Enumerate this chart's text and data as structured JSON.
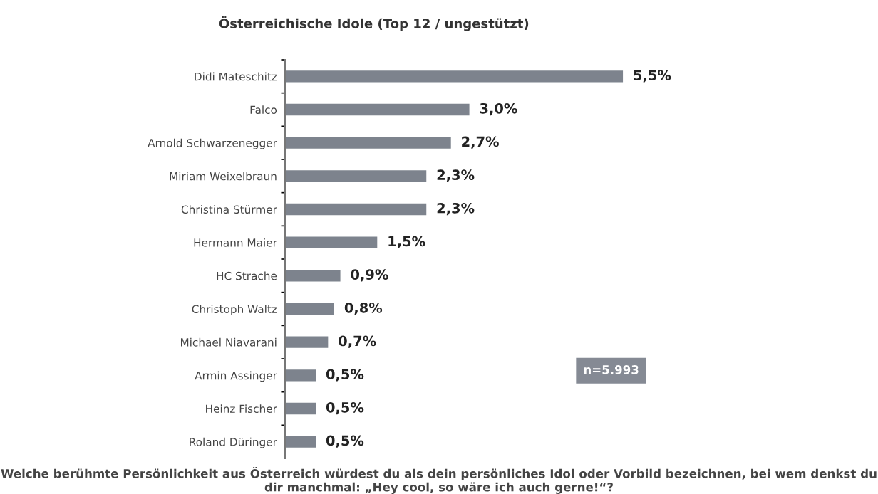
{
  "chart_data": {
    "type": "bar",
    "orientation": "horizontal",
    "title": "Österreichische Idole (Top 12 / ungestützt)",
    "categories": [
      "Didi Mateschitz",
      "Falco",
      "Arnold Schwarzenegger",
      "Miriam Weixelbraun",
      "Christina Stürmer",
      "Hermann Maier",
      "HC Strache",
      "Christoph Waltz",
      "Michael Niavarani",
      "Armin Assinger",
      "Heinz Fischer",
      "Roland Düringer"
    ],
    "values": [
      5.5,
      3.0,
      2.7,
      2.3,
      2.3,
      1.5,
      0.9,
      0.8,
      0.7,
      0.5,
      0.5,
      0.5
    ],
    "value_labels": [
      "5,5%",
      "3,0%",
      "2,7%",
      "2,3%",
      "2,3%",
      "1,5%",
      "0,9%",
      "0,8%",
      "0,7%",
      "0,5%",
      "0,5%",
      "0,5%"
    ],
    "color": "#7d838d",
    "annotations": [
      "n=5.993",
      "Welche berühmte Persönlichkeit aus Österreich würdest du als dein persönliches Idol oder Vorbild bezeichnen, bei wem denkst du dir manchmal: „Hey cool, so wäre ich auch gerne!“?"
    ],
    "grid": false,
    "legend": false
  }
}
